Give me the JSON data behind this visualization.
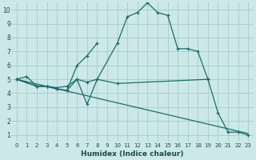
{
  "title": "",
  "xlabel": "Humidex (Indice chaleur)",
  "background_color": "#cce8e8",
  "grid_color": "#aacece",
  "line_color": "#1a6e6a",
  "xlim": [
    -0.5,
    23.5
  ],
  "ylim": [
    0.5,
    10.5
  ],
  "xticks": [
    0,
    1,
    2,
    3,
    4,
    5,
    6,
    7,
    8,
    9,
    10,
    11,
    12,
    13,
    14,
    15,
    16,
    17,
    18,
    19,
    20,
    21,
    22,
    23
  ],
  "yticks": [
    1,
    2,
    3,
    4,
    5,
    6,
    7,
    8,
    9,
    10
  ],
  "series1_x": [
    0,
    1,
    2,
    3,
    4,
    5,
    6,
    7,
    8,
    10,
    11,
    12,
    13,
    14,
    15,
    16,
    17,
    18,
    19,
    20,
    21,
    22,
    23
  ],
  "series1_y": [
    5.0,
    5.2,
    4.5,
    4.5,
    4.4,
    4.5,
    5.0,
    4.8,
    5.0,
    7.6,
    9.5,
    9.8,
    10.5,
    9.8,
    9.6,
    7.2,
    7.2,
    7.0,
    5.0,
    2.6,
    1.2,
    1.2,
    1.0
  ],
  "series2_x": [
    0,
    23
  ],
  "series2_y": [
    5.0,
    1.1
  ],
  "series3_x": [
    0,
    2,
    3,
    4,
    5,
    6,
    7,
    8,
    10,
    19
  ],
  "series3_y": [
    5.0,
    4.5,
    4.5,
    4.3,
    4.2,
    5.0,
    3.2,
    5.0,
    4.7,
    5.0
  ],
  "series4_x": [
    0,
    2,
    3,
    4,
    5,
    6,
    7,
    8
  ],
  "series4_y": [
    5.0,
    4.5,
    4.5,
    4.3,
    4.2,
    6.0,
    6.7,
    7.6
  ]
}
